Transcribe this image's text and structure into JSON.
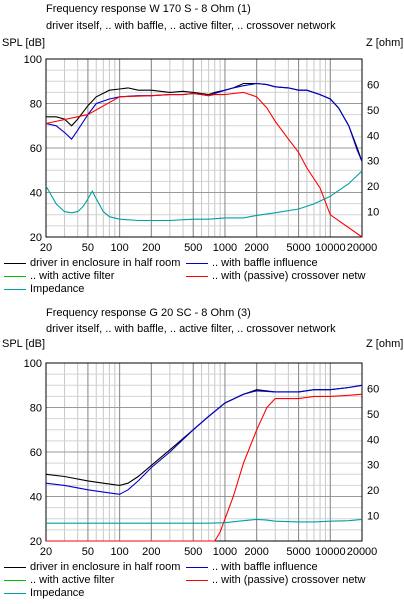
{
  "chart_data": [
    {
      "type": "line",
      "title": "Frequency response W 170 S - 8 Ohm (1)",
      "subtitle": "driver itself, .. with baffle, .. active filter, .. crossover network",
      "ylabel": "SPL [dB]",
      "y2label": "Z [ohm]",
      "xscale": "log",
      "xlim": [
        20,
        20000
      ],
      "ylim": [
        20,
        100
      ],
      "y2lim": [
        0,
        70
      ],
      "x_ticks": [
        "20",
        "50",
        "100",
        "200",
        "500",
        "1000",
        "2000",
        "5000",
        "10000",
        "20000"
      ],
      "y_ticks": [
        "20",
        "40",
        "60",
        "80",
        "100"
      ],
      "y2_ticks": [
        "10",
        "20",
        "30",
        "40",
        "50",
        "60"
      ],
      "grid": true,
      "legend": "bottom",
      "series": [
        {
          "name": "driver in enclosure in half room",
          "color": "#000000",
          "axis": "left",
          "x": [
            20,
            25,
            30,
            35,
            40,
            50,
            60,
            80,
            100,
            120,
            150,
            200,
            300,
            400,
            500,
            600,
            700,
            800,
            1000,
            1200,
            1500,
            2000,
            2500,
            3000,
            4000,
            5000,
            6000,
            8000,
            10000,
            12000,
            15000,
            18000,
            20000
          ],
          "y": [
            74,
            74,
            73,
            70,
            73,
            79,
            83,
            86,
            86.5,
            87,
            86,
            86,
            85,
            85.5,
            85,
            84.5,
            84,
            85,
            86,
            87,
            89,
            89,
            88.5,
            87.5,
            87,
            86,
            86,
            84,
            82,
            78,
            70,
            60,
            54
          ]
        },
        {
          "name": ".. with baffle influence",
          "color": "#0000cc",
          "axis": "left",
          "x": [
            20,
            25,
            30,
            35,
            40,
            50,
            60,
            80,
            100,
            150,
            200,
            300,
            400,
            500,
            600,
            700,
            800,
            1000,
            1200,
            1500,
            2000,
            2500,
            3000,
            4000,
            5000,
            6000,
            8000,
            10000,
            12000,
            15000,
            18000,
            20000
          ],
          "y": [
            71,
            70,
            67,
            64,
            68,
            75,
            80,
            82,
            83,
            83.5,
            83.5,
            84,
            84,
            84.5,
            84,
            83.5,
            84.5,
            86,
            87,
            88,
            89,
            88.5,
            87.5,
            87,
            86,
            86,
            84,
            82,
            78,
            70,
            59,
            54
          ]
        },
        {
          "name": ".. with active filter",
          "color": "#00c000",
          "axis": "left",
          "x": [],
          "y": []
        },
        {
          "name": ".. with (passive) crossover netw",
          "color": "#ff0000",
          "axis": "left",
          "x": [
            20,
            50,
            100,
            200,
            300,
            400,
            500,
            600,
            700,
            800,
            1000,
            1200,
            1500,
            2000,
            2500,
            3000,
            4000,
            5000,
            6000,
            8000,
            10000,
            20000
          ],
          "y": [
            71,
            75,
            83,
            83.5,
            84,
            84,
            84.5,
            84,
            83.5,
            84,
            84,
            84.5,
            85,
            83,
            78,
            72,
            64,
            58,
            51,
            42,
            30,
            20
          ]
        },
        {
          "name": "Impedance",
          "color": "#00a0a0",
          "axis": "right",
          "x": [
            20,
            25,
            30,
            35,
            40,
            45,
            50,
            55,
            60,
            70,
            80,
            100,
            150,
            200,
            300,
            500,
            700,
            1000,
            1500,
            2000,
            3000,
            5000,
            7000,
            10000,
            15000,
            20000
          ],
          "y": [
            20,
            13,
            10,
            9.5,
            10,
            12,
            15,
            18,
            15,
            10,
            8,
            7,
            6.5,
            6.5,
            6.5,
            7,
            7,
            7.5,
            7.5,
            8.5,
            9.5,
            11,
            13,
            16,
            21,
            26
          ]
        }
      ]
    },
    {
      "type": "line",
      "title": "Frequency response G 20 SC - 8 Ohm (3)",
      "subtitle": "driver itself, .. with baffle, .. active filter, .. crossover network",
      "ylabel": "SPL [dB]",
      "y2label": "Z [ohm]",
      "xscale": "log",
      "xlim": [
        20,
        20000
      ],
      "ylim": [
        20,
        100
      ],
      "y2lim": [
        0,
        70
      ],
      "x_ticks": [
        "20",
        "50",
        "100",
        "200",
        "500",
        "1000",
        "2000",
        "5000",
        "10000",
        "20000"
      ],
      "y_ticks": [
        "20",
        "40",
        "60",
        "80",
        "100"
      ],
      "y2_ticks": [
        "10",
        "20",
        "30",
        "40",
        "50",
        "60"
      ],
      "grid": true,
      "legend": "bottom",
      "series": [
        {
          "name": "driver in enclosure in half room",
          "color": "#000000",
          "axis": "left",
          "x": [
            20,
            30,
            50,
            70,
            100,
            120,
            150,
            200,
            300,
            500,
            700,
            1000,
            1500,
            2000,
            3000,
            5000,
            7000,
            10000,
            15000,
            20000
          ],
          "y": [
            50,
            49,
            47,
            46,
            45,
            46,
            49,
            54,
            61,
            70,
            76,
            82,
            86,
            88,
            87,
            87,
            88,
            88,
            89,
            90
          ]
        },
        {
          "name": ".. with baffle influence",
          "color": "#0000cc",
          "axis": "left",
          "x": [
            20,
            30,
            50,
            70,
            100,
            120,
            150,
            200,
            300,
            500,
            700,
            1000,
            1500,
            2000,
            3000,
            5000,
            7000,
            10000,
            15000,
            20000
          ],
          "y": [
            46,
            45,
            43,
            42,
            41,
            43,
            47,
            53,
            60,
            70,
            76,
            82,
            86,
            87.5,
            87,
            87,
            88,
            88,
            89,
            90
          ]
        },
        {
          "name": ".. with active filter",
          "color": "#00c000",
          "axis": "left",
          "x": [],
          "y": []
        },
        {
          "name": ".. with (passive) crossover netw",
          "color": "#ff0000",
          "axis": "left",
          "x": [
            20,
            500,
            800,
            900,
            1000,
            1200,
            1500,
            2000,
            2500,
            3000,
            5000,
            7000,
            10000,
            15000,
            20000
          ],
          "y": [
            20,
            20,
            20,
            24,
            30,
            40,
            55,
            70,
            80,
            84,
            84,
            85,
            85,
            85.5,
            86
          ]
        },
        {
          "name": "Impedance",
          "color": "#00a0a0",
          "axis": "right",
          "x": [
            20,
            100,
            500,
            700,
            1000,
            1500,
            2000,
            2500,
            3000,
            5000,
            7000,
            10000,
            15000,
            20000
          ],
          "y": [
            7,
            7,
            7,
            7,
            7.2,
            8,
            8.5,
            8.2,
            7.8,
            7.5,
            7.5,
            7.8,
            8,
            8.5
          ]
        }
      ]
    }
  ]
}
